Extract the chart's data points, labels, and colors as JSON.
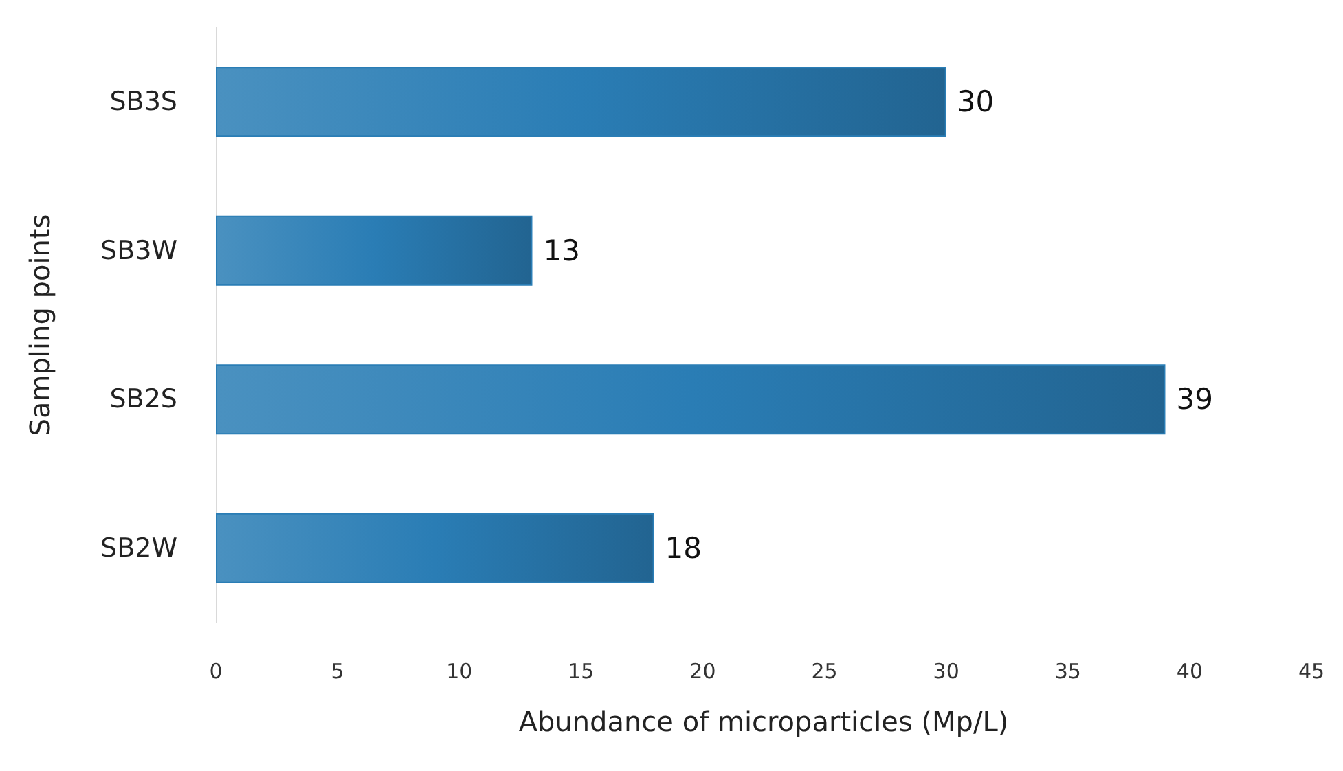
{
  "chart_data": {
    "type": "bar",
    "orientation": "horizontal",
    "xlabel": "Abundance of microparticles (Mp/L)",
    "ylabel": "Sampling points",
    "categories": [
      "SB3S",
      "SB3W",
      "SB2S",
      "SB2W"
    ],
    "values": [
      30,
      13,
      39,
      18
    ],
    "color": "#2a7db5",
    "xlim": [
      0,
      45
    ],
    "xticks": [
      0,
      5,
      10,
      15,
      20,
      25,
      30,
      35,
      40,
      45
    ],
    "grid": false,
    "data_labels": true
  }
}
